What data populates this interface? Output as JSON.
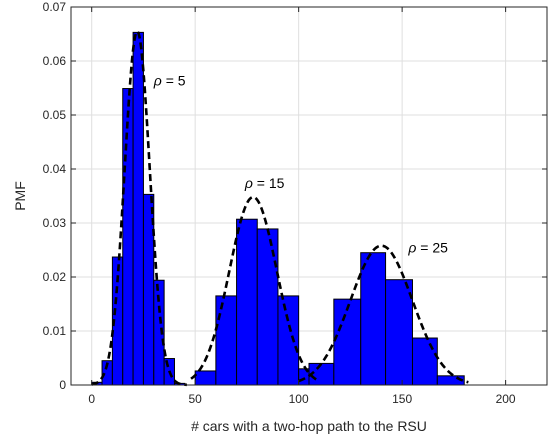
{
  "chart_data": {
    "type": "bar",
    "xlabel": "# cars with a two-hop path to the RSU",
    "ylabel": "PMF",
    "xlim": [
      -10,
      220
    ],
    "ylim": [
      0,
      0.07
    ],
    "xticks": [
      0,
      50,
      100,
      150,
      200
    ],
    "yticks": [
      0,
      0.01,
      0.02,
      0.03,
      0.04,
      0.05,
      0.06,
      0.07
    ],
    "xtick_labels": [
      "0",
      "50",
      "100",
      "150",
      "200"
    ],
    "ytick_labels": [
      "0",
      "0.01",
      "0.02",
      "0.03",
      "0.04",
      "0.05",
      "0.06",
      "0.07"
    ],
    "grid": true,
    "colors": {
      "bar_fill": "#0000ff",
      "bar_edge": "#000000",
      "curve": "#000000",
      "grid": "#dfdfdf"
    },
    "series": [
      {
        "label": "ρ = 5",
        "label_parts": [
          "ρ",
          " = 5"
        ],
        "label_at": [
          30,
          0.0555
        ],
        "bins": [
          {
            "x0": 0,
            "x1": 5,
            "value": 0.0005
          },
          {
            "x0": 5,
            "x1": 10,
            "value": 0.0045
          },
          {
            "x0": 10,
            "x1": 15,
            "value": 0.0237
          },
          {
            "x0": 15,
            "x1": 20,
            "value": 0.0549
          },
          {
            "x0": 20,
            "x1": 25,
            "value": 0.0653
          },
          {
            "x0": 25,
            "x1": 30,
            "value": 0.0353
          },
          {
            "x0": 30,
            "x1": 35,
            "value": 0.0194
          },
          {
            "x0": 35,
            "x1": 40,
            "value": 0.0049
          },
          {
            "x0": 40,
            "x1": 45,
            "value": 0.0003
          }
        ],
        "fit": {
          "mean": 22,
          "sd": 6.1,
          "peak": 0.0655,
          "range": [
            0,
            46
          ]
        }
      },
      {
        "label": "ρ = 15",
        "label_parts": [
          "ρ",
          " = 15"
        ],
        "label_at": [
          74,
          0.0365
        ],
        "bins": [
          {
            "x0": 50,
            "x1": 60,
            "value": 0.0026
          },
          {
            "x0": 60,
            "x1": 70,
            "value": 0.0165
          },
          {
            "x0": 70,
            "x1": 80,
            "value": 0.0307
          },
          {
            "x0": 80,
            "x1": 90,
            "value": 0.0289
          },
          {
            "x0": 90,
            "x1": 100,
            "value": 0.0165
          },
          {
            "x0": 100,
            "x1": 105,
            "value": 0.003
          }
        ],
        "fit": {
          "mean": 78,
          "sd": 11.5,
          "peak": 0.0348,
          "range": [
            48,
            110
          ]
        }
      },
      {
        "label": "ρ = 25",
        "label_parts": [
          "ρ",
          " = 25"
        ],
        "label_at": [
          153,
          0.0245
        ],
        "bins": [
          {
            "x0": 105,
            "x1": 117,
            "value": 0.004
          },
          {
            "x0": 117,
            "x1": 130,
            "value": 0.0159
          },
          {
            "x0": 130,
            "x1": 142,
            "value": 0.0245
          },
          {
            "x0": 142,
            "x1": 155,
            "value": 0.0195
          },
          {
            "x0": 155,
            "x1": 167,
            "value": 0.0087
          },
          {
            "x0": 167,
            "x1": 180,
            "value": 0.0017
          }
        ],
        "fit": {
          "mean": 140,
          "sd": 15,
          "peak": 0.0258,
          "range": [
            100,
            182
          ]
        }
      }
    ]
  }
}
